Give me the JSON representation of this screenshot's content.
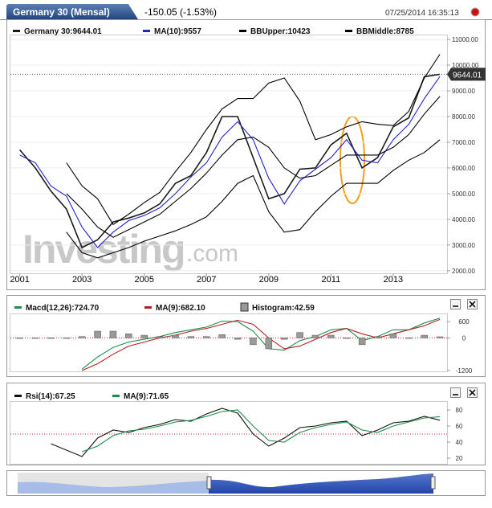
{
  "chart_data": [
    {
      "type": "line",
      "title": "Germany 30 (Mensal)",
      "subtitle": "-150.05 (-1.53%)",
      "timestamp": "07/25/2014 16:35:13",
      "watermark": [
        "Investing",
        ".com"
      ],
      "x": [
        2001,
        2001.5,
        2002,
        2002.5,
        2003,
        2003.5,
        2004,
        2004.5,
        2005,
        2005.5,
        2006,
        2006.5,
        2007,
        2007.5,
        2008,
        2008.5,
        2009,
        2009.5,
        2010,
        2010.5,
        2011,
        2011.5,
        2012,
        2012.5,
        2013,
        2013.5,
        2014,
        2014.5
      ],
      "xlim": [
        2000.7,
        2014.73
      ],
      "xticks": [
        2001,
        2003,
        2005,
        2007,
        2009,
        2011,
        2013
      ],
      "ylim": [
        1900,
        11190
      ],
      "yticks": [
        {
          "value": 2000,
          "label": "2000.00"
        },
        {
          "value": 3000,
          "label": "3000.00"
        },
        {
          "value": 4000,
          "label": "4000.00"
        },
        {
          "value": 5000,
          "label": "5000.00"
        },
        {
          "value": 6000,
          "label": "6000.00"
        },
        {
          "value": 7000,
          "label": "7000.00"
        },
        {
          "value": 8000,
          "label": "8000.00"
        },
        {
          "value": 9000,
          "label": "9000.00"
        },
        {
          "value": 10000,
          "label": "10000.00"
        },
        {
          "value": 11000,
          "label": "11000.00"
        }
      ],
      "series": [
        {
          "name": "Germany 30:9644.01",
          "color": "#1a1a1a",
          "values": [
            6700,
            6000,
            5100,
            4400,
            2900,
            3200,
            3900,
            4050,
            4250,
            4600,
            5400,
            5700,
            6600,
            8000,
            8000,
            6400,
            4800,
            5000,
            5950,
            6000,
            6900,
            7350,
            6000,
            6400,
            7600,
            7950,
            9550,
            9644.01
          ]
        },
        {
          "name": "MA(10):9557",
          "color": "#2222cc",
          "values": [
            6500,
            6200,
            5300,
            4900,
            3700,
            2900,
            3500,
            3950,
            4150,
            4450,
            5000,
            5650,
            6200,
            7200,
            7800,
            7100,
            5600,
            4600,
            5500,
            5950,
            6400,
            7100,
            6300,
            6200,
            7100,
            7700,
            8700,
            9557
          ]
        },
        {
          "name": "BBUpper:10423",
          "color": "#000000",
          "values": [
            null,
            null,
            null,
            6200,
            5300,
            4800,
            3800,
            4200,
            4650,
            5050,
            5850,
            6600,
            7500,
            8300,
            8700,
            8700,
            9300,
            9500,
            8600,
            7100,
            7300,
            7600,
            7800,
            7700,
            7650,
            8200,
            9500,
            10423
          ]
        },
        {
          "name": "BBMiddle:8785",
          "color": "#000000",
          "values": [
            null,
            null,
            null,
            5000,
            4400,
            3700,
            3300,
            3600,
            3900,
            4200,
            4700,
            5200,
            5800,
            6500,
            7100,
            7200,
            6800,
            6000,
            5600,
            5700,
            6100,
            6500,
            6500,
            6500,
            6800,
            7300,
            8100,
            8785
          ]
        },
        {
          "color": "#000000",
          "values": [
            null,
            null,
            null,
            3500,
            2700,
            2500,
            2700,
            2900,
            3150,
            3350,
            3550,
            3800,
            4100,
            4700,
            5400,
            5700,
            4300,
            3500,
            3600,
            4300,
            4900,
            5400,
            5400,
            5400,
            5900,
            6300,
            6600,
            7100
          ]
        }
      ]
    },
    {
      "type": "line",
      "x": [
        2001,
        2001.5,
        2002,
        2002.5,
        2003,
        2003.5,
        2004,
        2004.5,
        2005,
        2005.5,
        2006,
        2006.5,
        2007,
        2007.5,
        2008,
        2008.5,
        2009,
        2009.5,
        2010,
        2010.5,
        2011,
        2011.5,
        2012,
        2012.5,
        2013,
        2013.5,
        2014,
        2014.5
      ],
      "xlim": [
        2000.7,
        2014.73
      ],
      "ylim": [
        -1230,
        870
      ],
      "yticks": [
        600,
        0,
        -1200
      ],
      "series": [
        {
          "name": "Macd(12,26):724.70",
          "color": "#1e8c4e",
          "values": [
            null,
            null,
            null,
            null,
            -1150,
            -700,
            -350,
            -150,
            -50,
            50,
            200,
            300,
            400,
            620,
            600,
            250,
            -400,
            -450,
            -100,
            50,
            300,
            350,
            -100,
            50,
            300,
            300,
            550,
            724.7
          ]
        },
        {
          "name": "MA(9):682.10",
          "color": "#b22222",
          "values": [
            null,
            null,
            null,
            null,
            -1200,
            -950,
            -600,
            -300,
            -150,
            0,
            100,
            250,
            350,
            500,
            650,
            500,
            0,
            -400,
            -300,
            -50,
            200,
            350,
            150,
            0,
            150,
            300,
            450,
            682.1
          ]
        },
        {
          "name": "Histogram:42.59",
          "color": "#999999",
          "type": "bar",
          "values": [
            0,
            0,
            0,
            0,
            50,
            250,
            250,
            150,
            100,
            50,
            100,
            50,
            50,
            120,
            -50,
            -250,
            -400,
            -50,
            200,
            100,
            100,
            0,
            -250,
            50,
            150,
            0,
            100,
            42.59
          ]
        }
      ]
    },
    {
      "type": "line",
      "x": [
        2001,
        2001.5,
        2002,
        2002.5,
        2003,
        2003.5,
        2004,
        2004.5,
        2005,
        2005.5,
        2006,
        2006.5,
        2007,
        2007.5,
        2008,
        2008.5,
        2009,
        2009.5,
        2010,
        2010.5,
        2011,
        2011.5,
        2012,
        2012.5,
        2013,
        2013.5,
        2014,
        2014.5
      ],
      "xlim": [
        2000.7,
        2014.73
      ],
      "ylim": [
        12,
        90
      ],
      "yticks": [
        20,
        40,
        60,
        80
      ],
      "reference_line": 50,
      "series": [
        {
          "name": "Rsi(14):67.25",
          "color": "#111111",
          "values": [
            null,
            null,
            38,
            30,
            22,
            45,
            55,
            52,
            58,
            62,
            68,
            66,
            75,
            82,
            76,
            50,
            35,
            45,
            58,
            60,
            64,
            66,
            48,
            55,
            64,
            66,
            72,
            67.25
          ]
        },
        {
          "name": "MA(9):71.65",
          "color": "#1e8c4e",
          "values": [
            null,
            null,
            null,
            null,
            28,
            35,
            48,
            54,
            56,
            60,
            65,
            67,
            72,
            78,
            80,
            60,
            42,
            40,
            52,
            58,
            62,
            65,
            55,
            52,
            60,
            65,
            70,
            71.65
          ]
        }
      ]
    }
  ]
}
